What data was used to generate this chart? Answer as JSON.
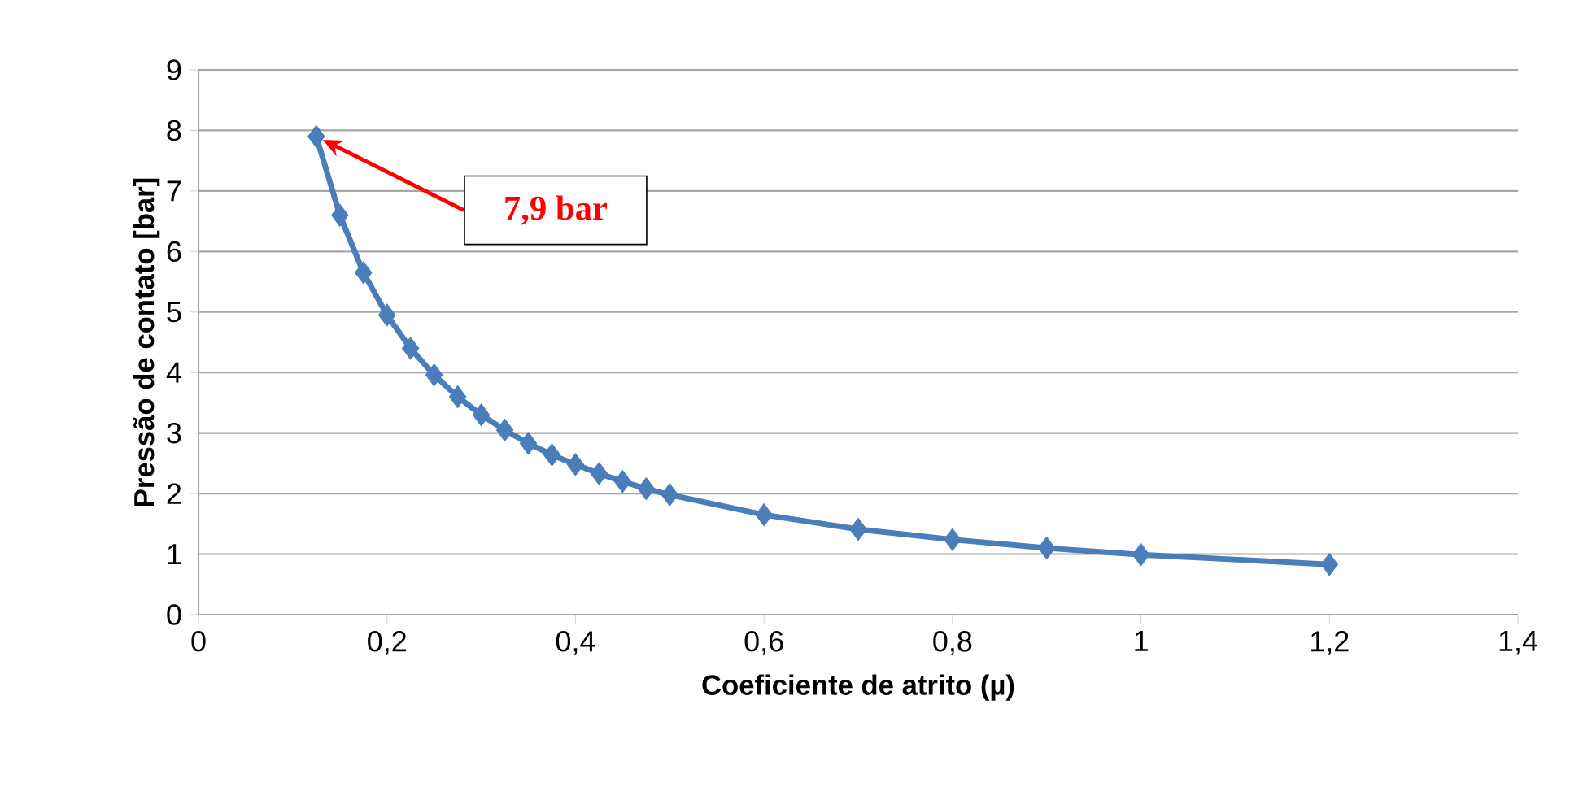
{
  "chart_data": {
    "type": "line",
    "xlabel": "Coeficiente de atrito (µ)",
    "ylabel": "Pressão de contato [bar]",
    "x": [
      0.125,
      0.15,
      0.175,
      0.2,
      0.225,
      0.25,
      0.275,
      0.3,
      0.325,
      0.35,
      0.375,
      0.4,
      0.425,
      0.45,
      0.475,
      0.5,
      0.6,
      0.7,
      0.8,
      0.9,
      1.0,
      1.2
    ],
    "values": [
      7.9,
      6.6,
      5.65,
      4.95,
      4.4,
      3.96,
      3.6,
      3.3,
      3.05,
      2.83,
      2.64,
      2.48,
      2.33,
      2.2,
      2.08,
      1.98,
      1.65,
      1.41,
      1.24,
      1.1,
      0.99,
      0.83
    ],
    "color": "#4a7ebb",
    "marker": "diamond",
    "line_style": "solid",
    "grid": "y",
    "xlim": [
      0,
      1.4
    ],
    "ylim": [
      0,
      9
    ],
    "xticks": [
      0,
      {
        "value": 0.2,
        "label": "0,2"
      },
      {
        "value": 0.4,
        "label": "0,4"
      },
      {
        "value": 0.6,
        "label": "0,6"
      },
      {
        "value": 0.8,
        "label": "0,8"
      },
      1,
      {
        "value": 1.2,
        "label": "1,2"
      },
      {
        "value": 1.4,
        "label": "1,4"
      }
    ],
    "yticks": [
      0,
      1,
      2,
      3,
      4,
      5,
      6,
      7,
      8,
      9
    ],
    "annotations": [
      "7,9 bar"
    ]
  }
}
